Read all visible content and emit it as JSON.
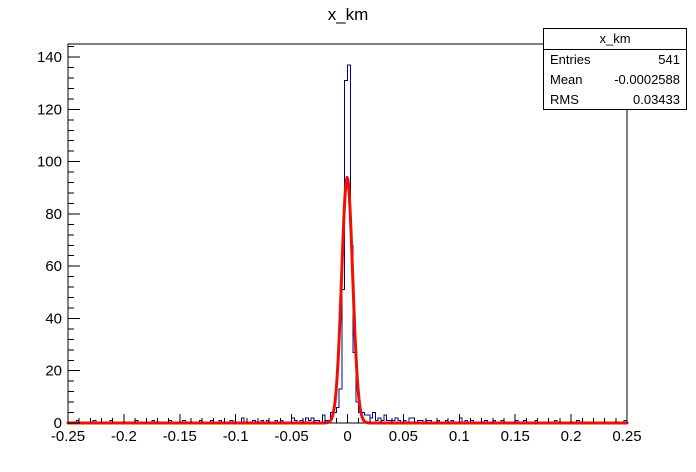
{
  "title": "x_km",
  "colors": {
    "histogram": "#000099",
    "fit": "#ee1100",
    "axis": "#000000",
    "background": "#ffffff"
  },
  "stats": {
    "title": "x_km",
    "rows": [
      {
        "label": "Entries",
        "value": "541"
      },
      {
        "label": "Mean",
        "value": "-0.0002588"
      },
      {
        "label": "RMS",
        "value": "0.03433"
      }
    ]
  },
  "chart_data": {
    "type": "bar",
    "subtype": "root-histogram-with-gaussian-fit",
    "title": "x_km",
    "xlabel": "",
    "ylabel": "",
    "x_range": [
      -0.25,
      0.25
    ],
    "y_range": [
      0,
      145
    ],
    "bin_width": 0.0025,
    "entries": 541,
    "mean": -0.0002588,
    "rms": 0.03433,
    "grid": false,
    "legend": "stats-box-top-right",
    "x_tick_values": [
      -0.25,
      -0.2,
      -0.15,
      -0.1,
      -0.05,
      0,
      0.05,
      0.1,
      0.15,
      0.2,
      0.25
    ],
    "x_tick_labels": [
      "-0.25",
      "-0.2",
      "-0.15",
      "-0.1",
      "-0.05",
      "0",
      "0.05",
      "0.1",
      "0.15",
      "0.2",
      "0.25"
    ],
    "x_minor_step": 0.01,
    "y_tick_values": [
      0,
      20,
      40,
      60,
      80,
      100,
      120,
      140
    ],
    "y_tick_labels": [
      "0",
      "20",
      "40",
      "60",
      "80",
      "100",
      "120",
      "140"
    ],
    "y_minor_step": 4,
    "bins": [
      [
        -0.2425,
        1
      ],
      [
        -0.2275,
        1
      ],
      [
        -0.2125,
        1
      ],
      [
        -0.19,
        1
      ],
      [
        -0.175,
        1
      ],
      [
        -0.16,
        1
      ],
      [
        -0.1475,
        1
      ],
      [
        -0.1325,
        1
      ],
      [
        -0.1225,
        1
      ],
      [
        -0.115,
        1
      ],
      [
        -0.105,
        1
      ],
      [
        -0.095,
        2
      ],
      [
        -0.085,
        1
      ],
      [
        -0.0775,
        1
      ],
      [
        -0.0725,
        1
      ],
      [
        -0.065,
        1
      ],
      [
        -0.06,
        1
      ],
      [
        -0.05,
        2
      ],
      [
        -0.0475,
        1
      ],
      [
        -0.0425,
        1
      ],
      [
        -0.0375,
        2
      ],
      [
        -0.035,
        1
      ],
      [
        -0.0325,
        2
      ],
      [
        -0.03,
        1
      ],
      [
        -0.0275,
        1
      ],
      [
        -0.0225,
        3
      ],
      [
        -0.02,
        1
      ],
      [
        -0.0175,
        1
      ],
      [
        -0.015,
        4
      ],
      [
        -0.0125,
        4
      ],
      [
        -0.01,
        6
      ],
      [
        -0.0075,
        13
      ],
      [
        -0.005,
        51
      ],
      [
        -0.0025,
        131
      ],
      [
        0,
        137
      ],
      [
        0.0025,
        68
      ],
      [
        0.005,
        27
      ],
      [
        0.0075,
        8
      ],
      [
        0.01,
        4
      ],
      [
        0.0125,
        4
      ],
      [
        0.015,
        3
      ],
      [
        0.0175,
        3
      ],
      [
        0.02,
        2
      ],
      [
        0.0225,
        4
      ],
      [
        0.025,
        1
      ],
      [
        0.0275,
        2
      ],
      [
        0.03,
        1
      ],
      [
        0.0325,
        3
      ],
      [
        0.035,
        1
      ],
      [
        0.0375,
        1
      ],
      [
        0.04,
        1
      ],
      [
        0.0425,
        2
      ],
      [
        0.045,
        1
      ],
      [
        0.05,
        1
      ],
      [
        0.055,
        2
      ],
      [
        0.0575,
        2
      ],
      [
        0.0625,
        1
      ],
      [
        0.065,
        1
      ],
      [
        0.07,
        1
      ],
      [
        0.0725,
        1
      ],
      [
        0.08,
        1
      ],
      [
        0.0875,
        1
      ],
      [
        0.0925,
        1
      ],
      [
        0.1,
        2
      ],
      [
        0.105,
        1
      ],
      [
        0.11,
        1
      ],
      [
        0.1225,
        1
      ],
      [
        0.13,
        1
      ],
      [
        0.1375,
        1
      ],
      [
        0.15,
        1
      ],
      [
        0.1575,
        1
      ],
      [
        0.1675,
        1
      ],
      [
        0.185,
        1
      ],
      [
        0.205,
        1
      ],
      [
        0.2475,
        1
      ]
    ],
    "fit": {
      "type": "gaussian",
      "amplitude": 94,
      "mean": -0.0003,
      "sigma": 0.0049
    }
  }
}
